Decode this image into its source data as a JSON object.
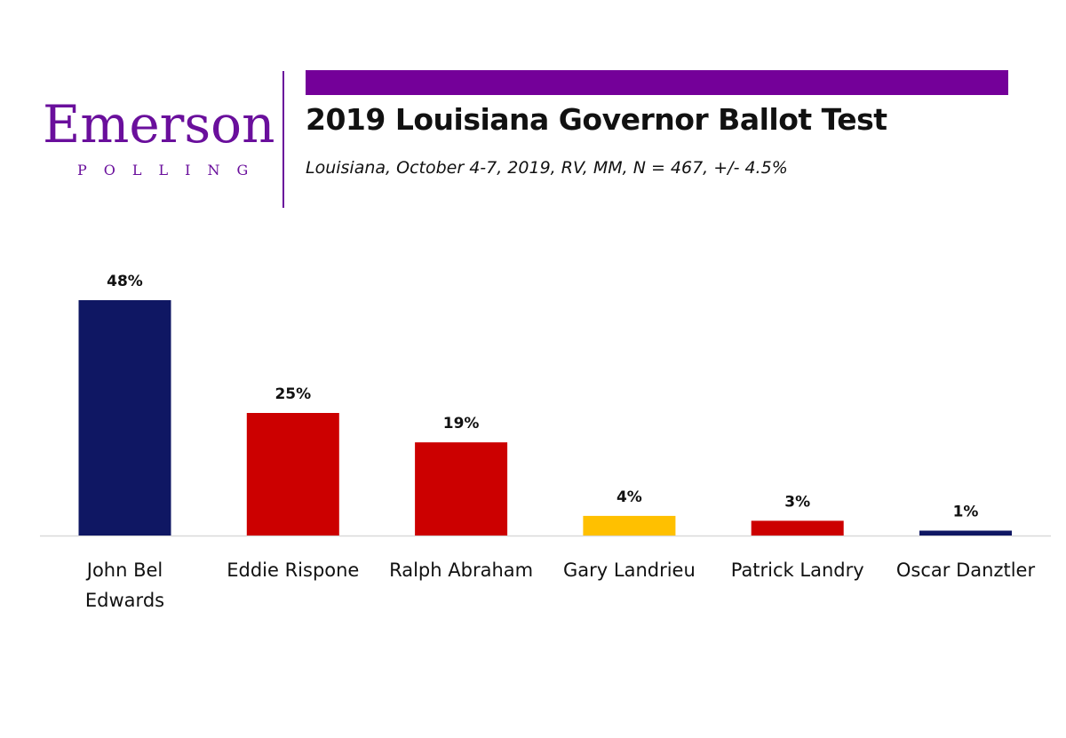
{
  "logo": {
    "name": "Emerson",
    "tagline": "POLLING"
  },
  "header": {
    "title": "2019 Louisiana Governor Ballot Test",
    "subtitle": "Louisiana, October 4-7, 2019, RV, MM, N = 467, +/- 4.5%"
  },
  "colors": {
    "brand_purple": "#6a0f9c",
    "accent_bar": "#740099",
    "navy": "#0f1763",
    "red": "#cc0000",
    "gold": "#ffc000",
    "axis": "#d9d9d9"
  },
  "chart_data": {
    "type": "bar",
    "title": "2019 Louisiana Governor Ballot Test",
    "xlabel": "",
    "ylabel": "",
    "ylim": [
      0,
      48
    ],
    "grid": false,
    "categories": [
      [
        "John Bel",
        "Edwards"
      ],
      [
        "Eddie Rispone"
      ],
      [
        "Ralph Abraham"
      ],
      [
        "Gary Landrieu"
      ],
      [
        "Patrick Landry"
      ],
      [
        "Oscar Danztler"
      ]
    ],
    "values": [
      48,
      25,
      19,
      4,
      3,
      1
    ],
    "data_labels": [
      "48%",
      "25%",
      "19%",
      "4%",
      "3%",
      "1%"
    ],
    "bar_colors": [
      "#0f1763",
      "#cc0000",
      "#cc0000",
      "#ffc000",
      "#cc0000",
      "#0f1763"
    ]
  }
}
